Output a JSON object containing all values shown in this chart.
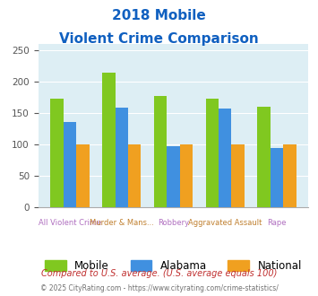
{
  "title_line1": "2018 Mobile",
  "title_line2": "Violent Crime Comparison",
  "categories": [
    "All Violent Crime",
    "Murder & Mans...",
    "Robbery",
    "Aggravated Assault",
    "Rape"
  ],
  "mobile_values": [
    173,
    215,
    178,
    173,
    161
  ],
  "alabama_values": [
    136,
    159,
    98,
    158,
    95
  ],
  "national_values": [
    100,
    100,
    100,
    100,
    100
  ],
  "mobile_color": "#80c820",
  "alabama_color": "#4090e0",
  "national_color": "#f0a020",
  "ylim": [
    0,
    260
  ],
  "yticks": [
    0,
    50,
    100,
    150,
    200,
    250
  ],
  "legend_labels": [
    "Mobile",
    "Alabama",
    "National"
  ],
  "footnote1": "Compared to U.S. average. (U.S. average equals 100)",
  "footnote2": "© 2025 CityRating.com - https://www.cityrating.com/crime-statistics/",
  "bg_color": "#ddeef4",
  "title_color": "#1060c0",
  "cat_color1": "#b070c0",
  "cat_color2": "#c08030",
  "footnote1_color": "#c03030",
  "footnote2_color": "#707070"
}
